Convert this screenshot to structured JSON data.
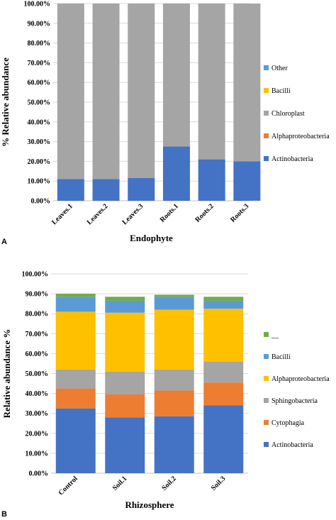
{
  "panel_labels": {
    "a": "A",
    "b": "B"
  },
  "chart_data": [
    {
      "type": "bar",
      "stacked": true,
      "xlabel": "Endophyte",
      "ylabel": "% Relative abundance",
      "ylim": [
        0,
        100
      ],
      "yticks": [
        "0.00%",
        "10.00%",
        "20.00%",
        "30.00%",
        "40.00%",
        "50.00%",
        "60.00%",
        "70.00%",
        "80.00%",
        "90.00%",
        "100.00%"
      ],
      "categories": [
        "Leaves.1",
        "Leaves.2",
        "Leaves.3",
        "Roots.1",
        "Roots.2",
        "Roots.3"
      ],
      "legend_position": "right",
      "grid": true,
      "series": [
        {
          "name": "Actinobacteria",
          "color": "#4472C4",
          "values": [
            11,
            11,
            11.5,
            27.5,
            21,
            20
          ]
        },
        {
          "name": "Alphaproteobacteria",
          "color": "#ED7D31",
          "values": [
            0,
            0,
            0,
            0,
            0,
            0
          ]
        },
        {
          "name": "Chloroplast",
          "color": "#A5A5A5",
          "values": [
            89,
            89,
            88.5,
            72.5,
            79,
            80
          ]
        },
        {
          "name": "Bacilli",
          "color": "#FFC000",
          "values": [
            0,
            0,
            0,
            0,
            0,
            0
          ]
        },
        {
          "name": "Other",
          "color": "#5B9BD5",
          "values": [
            0,
            0,
            0,
            0,
            0,
            0
          ]
        }
      ]
    },
    {
      "type": "bar",
      "stacked": true,
      "xlabel": "Rhizosphere",
      "ylabel": "Relative abundance %",
      "ylim": [
        0,
        100
      ],
      "yticks": [
        "0.00%",
        "10.00%",
        "20.00%",
        "30.00%",
        "40.00%",
        "50.00%",
        "60.00%",
        "70.00%",
        "80.00%",
        "90.00%",
        "100.00%"
      ],
      "categories": [
        "Control",
        "Soil.1",
        "Soil.2",
        "Soil.3"
      ],
      "legend_position": "right",
      "grid": true,
      "series": [
        {
          "name": "Actinobacteria",
          "color": "#4472C4",
          "values": [
            32.5,
            28,
            28.5,
            34
          ]
        },
        {
          "name": "Cytophagia",
          "color": "#ED7D31",
          "values": [
            10,
            11.5,
            13,
            11.5
          ]
        },
        {
          "name": "Sphingobacteria",
          "color": "#A5A5A5",
          "values": [
            9.5,
            11.5,
            10.5,
            10.5
          ]
        },
        {
          "name": "Alphaproteobacteria",
          "color": "#FFC000",
          "values": [
            29,
            29.5,
            30,
            26.5
          ]
        },
        {
          "name": "Bacilli",
          "color": "#5B9BD5",
          "values": [
            7.5,
            6,
            6.5,
            4
          ]
        },
        {
          "name": "__",
          "color": "#70AD47",
          "values": [
            1.5,
            2,
            1,
            2
          ]
        }
      ]
    }
  ]
}
